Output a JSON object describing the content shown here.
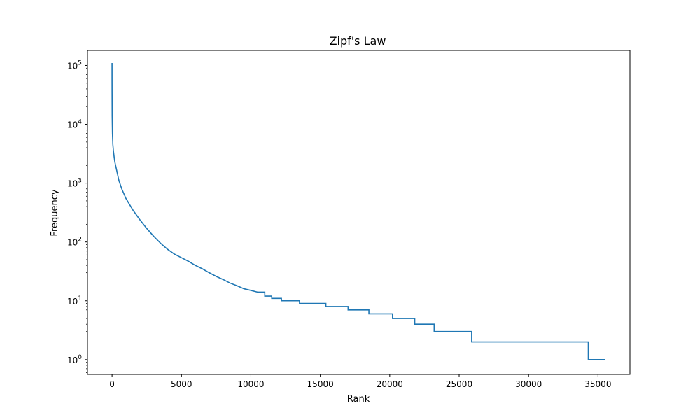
{
  "chart_data": {
    "type": "line",
    "title": "Zipf's Law",
    "xlabel": "Rank",
    "ylabel": "Frequency",
    "yscale": "log",
    "xlim": [
      -1770,
      37300
    ],
    "ylim": [
      0.56,
      180000
    ],
    "grid": false,
    "legend": "none",
    "x_ticks": [
      {
        "value": 0,
        "label": "0"
      },
      {
        "value": 5000,
        "label": "5000"
      },
      {
        "value": 10000,
        "label": "10000"
      },
      {
        "value": 15000,
        "label": "15000"
      },
      {
        "value": 20000,
        "label": "20000"
      },
      {
        "value": 25000,
        "label": "25000"
      },
      {
        "value": 30000,
        "label": "30000"
      },
      {
        "value": 35000,
        "label": "35000"
      }
    ],
    "y_ticks": [
      {
        "value": 1,
        "base": "10",
        "exp": "0"
      },
      {
        "value": 10,
        "base": "10",
        "exp": "1"
      },
      {
        "value": 100,
        "base": "10",
        "exp": "2"
      },
      {
        "value": 1000,
        "base": "10",
        "exp": "3"
      },
      {
        "value": 10000,
        "base": "10",
        "exp": "4"
      },
      {
        "value": 100000,
        "base": "10",
        "exp": "5"
      }
    ],
    "colors": {
      "line": "#1f77b4"
    },
    "series": [
      {
        "x": [
          0,
          1,
          3,
          10,
          30,
          60,
          100,
          150,
          200,
          300,
          400,
          500,
          700,
          1000,
          1500,
          2000,
          2500,
          3000,
          3500,
          4000,
          4500,
          5000,
          5500,
          6000,
          6500,
          7000,
          7500,
          8000,
          8500,
          9000,
          9500,
          10000,
          10500,
          11000,
          11500,
          12200,
          13500,
          15400,
          17000,
          18500,
          20200,
          21800,
          23200,
          25900,
          34300,
          35500
        ],
        "y": [
          110000,
          55000,
          35000,
          14000,
          7000,
          4500,
          3500,
          2800,
          2300,
          1800,
          1400,
          1100,
          800,
          550,
          350,
          240,
          170,
          125,
          95,
          75,
          62,
          54,
          47,
          40,
          35,
          30,
          26,
          23,
          20,
          18,
          16,
          15,
          14,
          12,
          11,
          10,
          9,
          8,
          7,
          6,
          5,
          4,
          3,
          2,
          1,
          1
        ]
      }
    ]
  }
}
